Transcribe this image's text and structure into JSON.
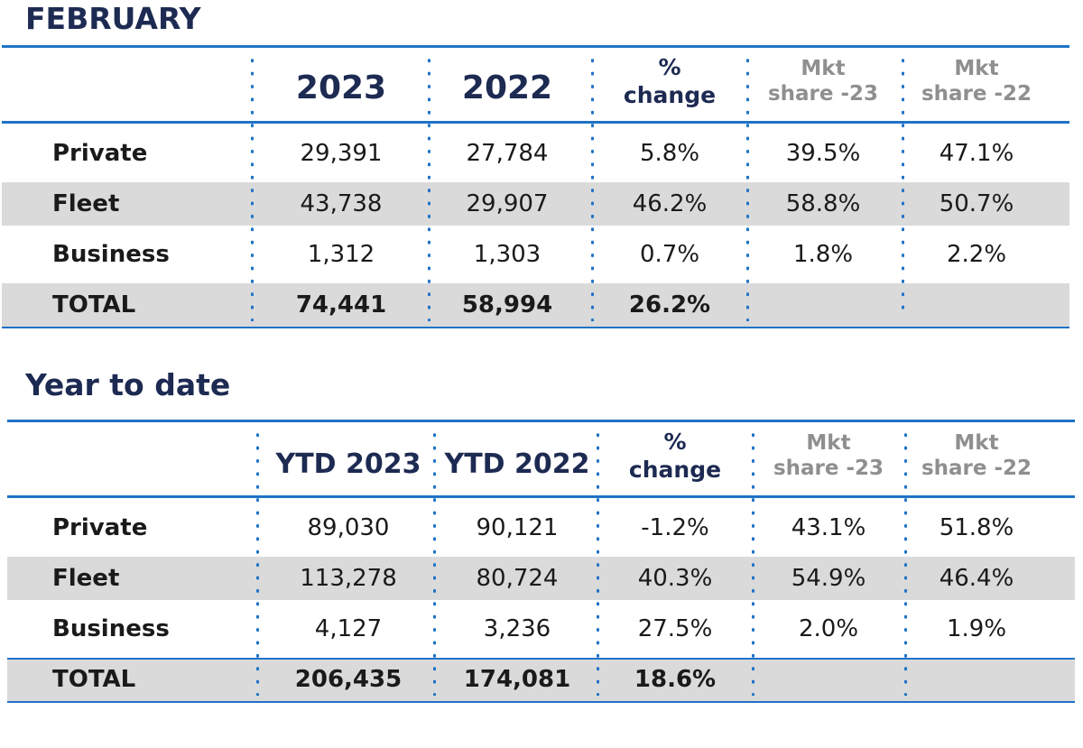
{
  "sections": [
    {
      "title": "FEBRUARY",
      "headers": {
        "col1": "2023",
        "col2": "2022",
        "pct": [
          "%",
          "change"
        ],
        "mkt23": [
          "Mkt",
          "share -23"
        ],
        "mkt22": [
          "Mkt",
          "share -22"
        ]
      },
      "rows": [
        {
          "label": "Private",
          "v1": "29,391",
          "v2": "27,784",
          "pct": "5.8%",
          "mkt23": "39.5%",
          "mkt22": "47.1%"
        },
        {
          "label": "Fleet",
          "v1": "43,738",
          "v2": "29,907",
          "pct": "46.2%",
          "mkt23": "58.8%",
          "mkt22": "50.7%"
        },
        {
          "label": "Business",
          "v1": "1,312",
          "v2": "1,303",
          "pct": "0.7%",
          "mkt23": "1.8%",
          "mkt22": "2.2%"
        },
        {
          "label": "TOTAL",
          "v1": "74,441",
          "v2": "58,994",
          "pct": "26.2%",
          "mkt23": "",
          "mkt22": ""
        }
      ]
    },
    {
      "title": "Year to date",
      "headers": {
        "col1": "YTD 2023",
        "col2": "YTD 2022",
        "pct": [
          "%",
          "change"
        ],
        "mkt23": [
          "Mkt",
          "share -23"
        ],
        "mkt22": [
          "Mkt",
          "share -22"
        ]
      },
      "rows": [
        {
          "label": "Private",
          "v1": "89,030",
          "v2": "90,121",
          "pct": "-1.2%",
          "mkt23": "43.1%",
          "mkt22": "51.8%"
        },
        {
          "label": "Fleet",
          "v1": "113,278",
          "v2": "80,724",
          "pct": "40.3%",
          "mkt23": "54.9%",
          "mkt22": "46.4%"
        },
        {
          "label": "Business",
          "v1": "4,127",
          "v2": "3,236",
          "pct": "27.5%",
          "mkt23": "2.0%",
          "mkt22": "1.9%"
        },
        {
          "label": "TOTAL",
          "v1": "206,435",
          "v2": "174,081",
          "pct": "18.6%",
          "mkt23": "",
          "mkt22": ""
        }
      ]
    }
  ],
  "colors": {
    "title": "#1d2a52",
    "rule": "#1f73c6",
    "shade": "#dadada",
    "muted_header": "#8f8f8f",
    "text": "#1a1a1a"
  }
}
